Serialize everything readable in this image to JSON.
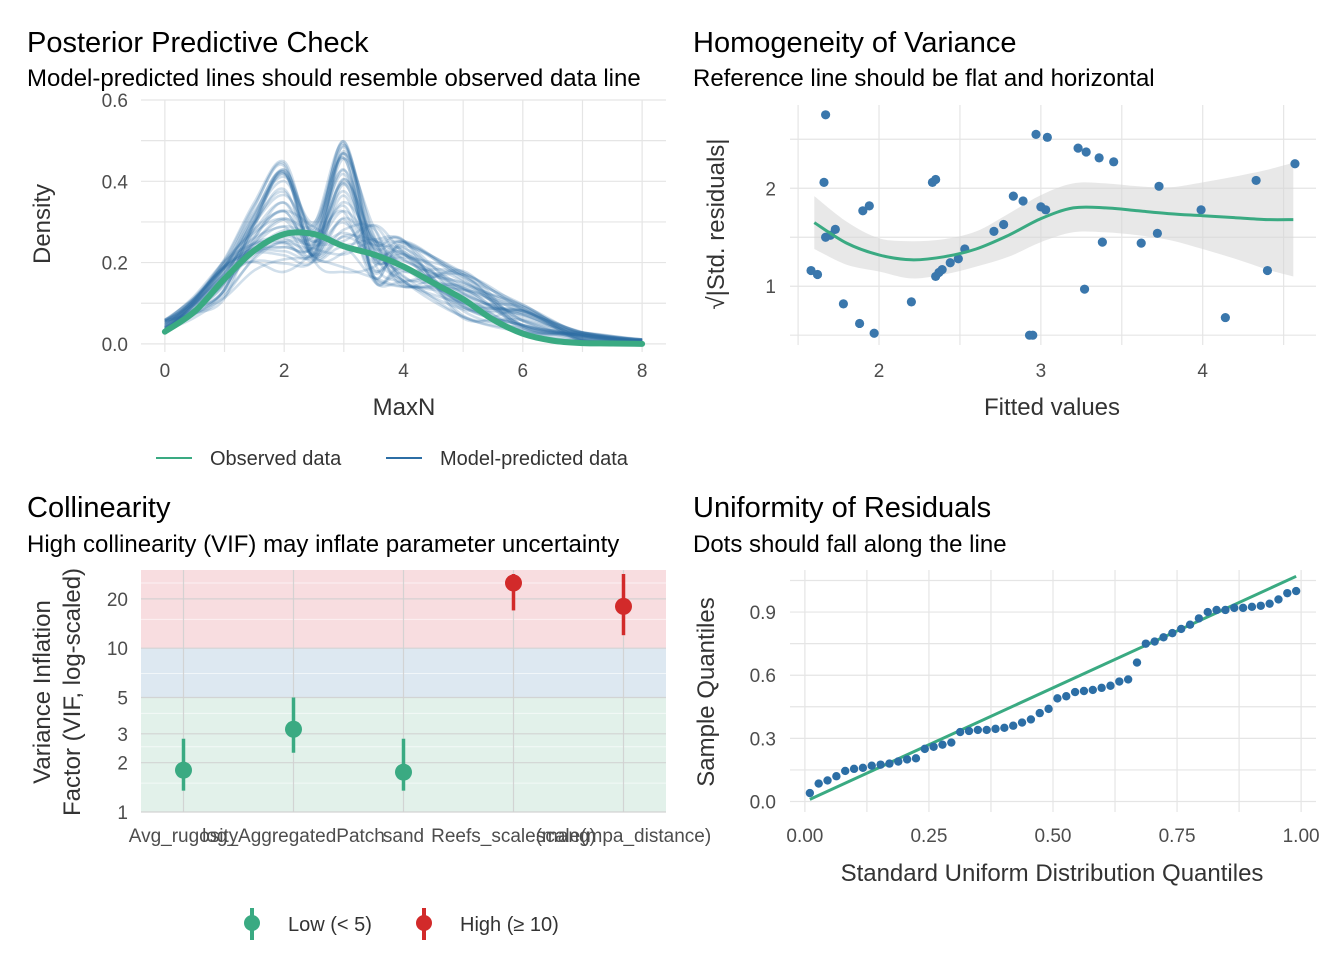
{
  "colors": {
    "observed": "#3aaa82",
    "predicted": "#2c6ea5",
    "low": "#3aaa82",
    "high": "#d22a2a",
    "low_band": "#e2f1ea",
    "mid_band": "#dde8f1",
    "high_band": "#f8dde0",
    "point": "#3a77ac",
    "ci": "#d6d6d6",
    "grid": "#e5e5e5"
  },
  "chart_data": [
    {
      "type": "line",
      "title": "Posterior Predictive Check",
      "subtitle": "Model-predicted lines should resemble observed data line",
      "xlabel": "MaxN",
      "ylabel": "Density",
      "xlim": [
        -0.4,
        8.4
      ],
      "ylim": [
        -0.02,
        0.6
      ],
      "xticks": [
        "0",
        "2",
        "4",
        "6",
        "8"
      ],
      "yticks": [
        "0.0",
        "0.2",
        "0.4",
        "0.6"
      ],
      "legend": {
        "position": "bottom",
        "items": [
          "Observed data",
          "Model-predicted data"
        ]
      },
      "observed": {
        "x": [
          0,
          0.5,
          1,
          1.5,
          2,
          2.5,
          3,
          3.5,
          4,
          4.5,
          5,
          5.5,
          6,
          6.5,
          7,
          7.5,
          8
        ],
        "y": [
          0.03,
          0.08,
          0.16,
          0.23,
          0.27,
          0.27,
          0.24,
          0.22,
          0.19,
          0.15,
          0.11,
          0.06,
          0.025,
          0.008,
          0.002,
          0.001,
          0.0
        ]
      },
      "predicted_draws": 40
    },
    {
      "type": "scatter",
      "title": "Homogeneity of Variance",
      "subtitle": "Reference line should be flat and horizontal",
      "xlabel": "Fitted values",
      "ylabel": "√|Std. residuals|",
      "xlim": [
        1.45,
        4.7
      ],
      "ylim": [
        0.4,
        2.85
      ],
      "xticks": [
        "2",
        "3",
        "4"
      ],
      "yticks": [
        "1",
        "2"
      ],
      "points": [
        [
          1.58,
          1.16
        ],
        [
          1.62,
          1.12
        ],
        [
          1.66,
          2.06
        ],
        [
          1.67,
          2.75
        ],
        [
          1.67,
          1.5
        ],
        [
          1.7,
          1.52
        ],
        [
          1.73,
          1.58
        ],
        [
          1.78,
          0.82
        ],
        [
          1.88,
          0.62
        ],
        [
          1.9,
          1.77
        ],
        [
          1.94,
          1.82
        ],
        [
          1.97,
          0.52
        ],
        [
          2.2,
          0.84
        ],
        [
          2.33,
          2.06
        ],
        [
          2.35,
          2.09
        ],
        [
          2.35,
          1.1
        ],
        [
          2.37,
          1.14
        ],
        [
          2.39,
          1.17
        ],
        [
          2.44,
          1.24
        ],
        [
          2.49,
          1.28
        ],
        [
          2.53,
          1.38
        ],
        [
          2.71,
          1.56
        ],
        [
          2.77,
          1.63
        ],
        [
          2.83,
          1.92
        ],
        [
          2.89,
          1.87
        ],
        [
          2.93,
          0.5
        ],
        [
          2.95,
          0.5
        ],
        [
          2.97,
          2.55
        ],
        [
          3.0,
          1.81
        ],
        [
          3.03,
          1.78
        ],
        [
          3.04,
          2.52
        ],
        [
          3.23,
          2.41
        ],
        [
          3.28,
          2.37
        ],
        [
          3.36,
          2.31
        ],
        [
          3.38,
          1.45
        ],
        [
          3.27,
          0.97
        ],
        [
          3.45,
          2.27
        ],
        [
          3.62,
          1.44
        ],
        [
          3.72,
          1.54
        ],
        [
          3.73,
          2.02
        ],
        [
          3.99,
          1.78
        ],
        [
          4.14,
          0.68
        ],
        [
          4.33,
          2.08
        ],
        [
          4.4,
          1.16
        ],
        [
          4.57,
          2.25
        ]
      ],
      "smooth": {
        "x": [
          1.6,
          1.8,
          2.0,
          2.2,
          2.4,
          2.6,
          2.8,
          3.0,
          3.2,
          3.4,
          3.6,
          3.8,
          4.0,
          4.2,
          4.4,
          4.56
        ],
        "y": [
          1.65,
          1.44,
          1.32,
          1.27,
          1.3,
          1.38,
          1.52,
          1.69,
          1.8,
          1.8,
          1.77,
          1.74,
          1.72,
          1.7,
          1.68,
          1.68
        ],
        "lower": [
          1.38,
          1.22,
          1.15,
          1.08,
          1.12,
          1.2,
          1.3,
          1.45,
          1.55,
          1.55,
          1.52,
          1.47,
          1.38,
          1.28,
          1.17,
          1.1
        ],
        "upper": [
          1.92,
          1.66,
          1.49,
          1.46,
          1.48,
          1.56,
          1.74,
          1.93,
          2.05,
          2.05,
          2.02,
          2.01,
          2.06,
          2.12,
          2.19,
          2.26
        ]
      }
    },
    {
      "type": "scatter",
      "title": "Collinearity",
      "subtitle": "High collinearity (VIF) may inflate parameter uncertainty",
      "xlabel": "",
      "ylabel_lines": [
        "Variance Inflation",
        "Factor (VIF, log-scaled)"
      ],
      "ylim": [
        1,
        30
      ],
      "yscale": "log",
      "yticks": [
        1,
        2,
        3,
        5,
        10,
        20
      ],
      "categories": [
        "Avg_rugosity",
        "log_AggregatedPatch",
        "sand",
        "Reefs_scale(mang)",
        "scale(mpa_distance)"
      ],
      "vif": [
        1.8,
        3.2,
        1.75,
        25,
        18
      ],
      "ci_low": [
        1.35,
        2.3,
        1.35,
        17,
        12
      ],
      "ci_high": [
        2.8,
        5.0,
        2.8,
        30,
        30
      ],
      "group": [
        "low",
        "low",
        "low",
        "high",
        "high"
      ],
      "legend": {
        "position": "bottom",
        "items": [
          "Low (< 5)",
          "High (≥ 10)"
        ]
      }
    },
    {
      "type": "scatter",
      "title": "Uniformity of Residuals",
      "subtitle": "Dots should fall along the line",
      "xlabel": "Standard Uniform Distribution Quantiles",
      "ylabel": "Sample Quantiles",
      "xlim": [
        -0.03,
        1.03
      ],
      "ylim": [
        -0.05,
        1.1
      ],
      "xticks": [
        "0.00",
        "0.25",
        "0.50",
        "0.75",
        "1.00"
      ],
      "yticks": [
        "0.0",
        "0.3",
        "0.6",
        "0.9"
      ],
      "reference_line": [
        [
          0.01,
          0.01
        ],
        [
          0.99,
          1.07
        ]
      ],
      "sample": [
        0.04,
        0.085,
        0.1,
        0.12,
        0.145,
        0.155,
        0.16,
        0.17,
        0.175,
        0.18,
        0.19,
        0.2,
        0.205,
        0.25,
        0.26,
        0.27,
        0.28,
        0.33,
        0.335,
        0.34,
        0.34,
        0.345,
        0.35,
        0.36,
        0.375,
        0.39,
        0.42,
        0.44,
        0.49,
        0.5,
        0.52,
        0.525,
        0.53,
        0.54,
        0.55,
        0.57,
        0.58,
        0.66,
        0.75,
        0.76,
        0.78,
        0.8,
        0.82,
        0.84,
        0.87,
        0.9,
        0.91,
        0.91,
        0.92,
        0.92,
        0.925,
        0.93,
        0.94,
        0.96,
        0.99,
        1.0
      ]
    }
  ]
}
